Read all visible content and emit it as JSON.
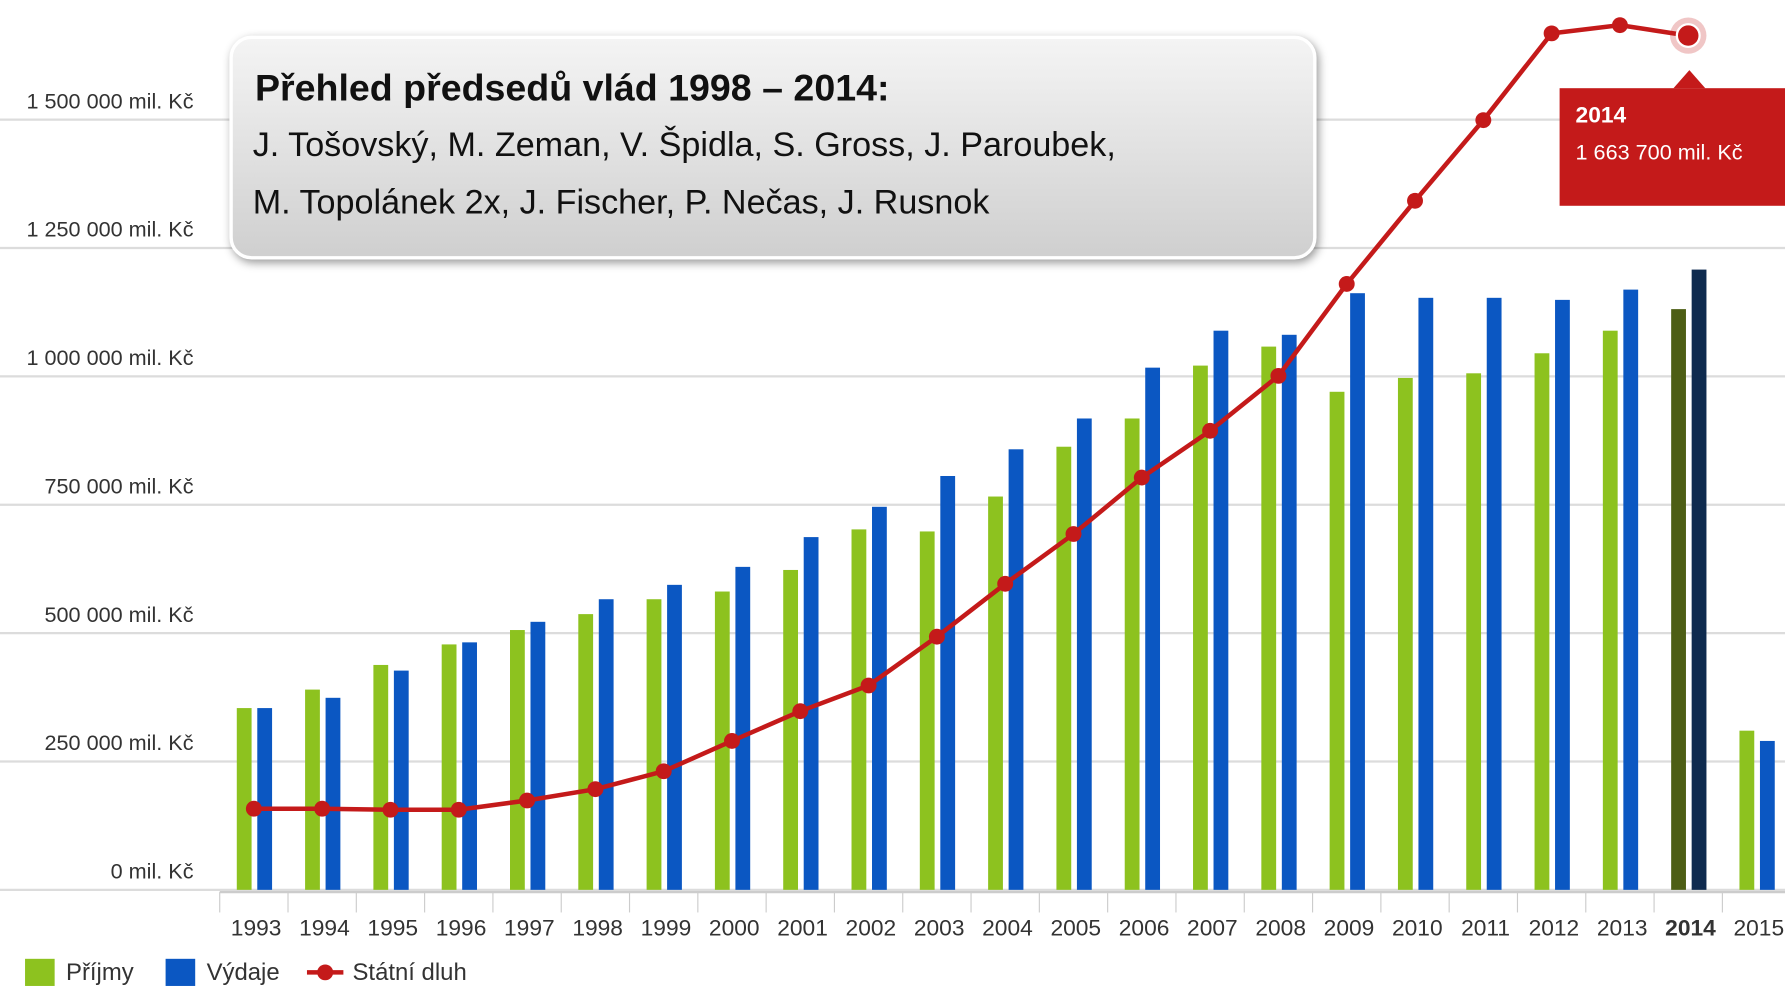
{
  "chart_data": {
    "type": "bar_line",
    "categories": [
      "1993",
      "1994",
      "1995",
      "1996",
      "1997",
      "1998",
      "1999",
      "2000",
      "2001",
      "2002",
      "2003",
      "2004",
      "2005",
      "2006",
      "2007",
      "2008",
      "2009",
      "2010",
      "2011",
      "2012",
      "2013",
      "2014",
      "2015"
    ],
    "series": [
      {
        "name": "Příjmy",
        "type": "bar",
        "color": "#8dc21f",
        "highlight_color": "#4d5e14",
        "values": [
          354000,
          390000,
          438000,
          478000,
          506000,
          537000,
          566000,
          581000,
          623000,
          702000,
          698000,
          766000,
          863000,
          918000,
          1021000,
          1058000,
          970000,
          997000,
          1006000,
          1045000,
          1089000,
          1131000,
          310000
        ]
      },
      {
        "name": "Výdaje",
        "type": "bar",
        "color": "#0b57c2",
        "highlight_color": "#0f2b4f",
        "values": [
          354000,
          374000,
          427000,
          482000,
          522000,
          566000,
          594000,
          629000,
          687000,
          746000,
          806000,
          858000,
          918000,
          1017000,
          1089000,
          1081000,
          1162000,
          1153000,
          1153000,
          1149000,
          1169000,
          1208000,
          290000
        ]
      },
      {
        "name": "Státní dluh",
        "type": "line",
        "color": "#c41a1a",
        "values": [
          158000,
          158000,
          156000,
          156000,
          174000,
          196000,
          231000,
          290000,
          348000,
          398000,
          493000,
          596000,
          693000,
          803000,
          894000,
          1001000,
          1180000,
          1342000,
          1499000,
          1668000,
          1684000,
          1663700,
          null
        ]
      }
    ],
    "ylim": [
      0,
      1700000
    ],
    "yticks": [
      {
        "value": 0,
        "label": "0 mil. Kč"
      },
      {
        "value": 250000,
        "label": "250 000 mil. Kč"
      },
      {
        "value": 500000,
        "label": "500 000 mil. Kč"
      },
      {
        "value": 750000,
        "label": "750 000 mil. Kč"
      },
      {
        "value": 1000000,
        "label": "1 000 000 mil. Kč"
      },
      {
        "value": 1250000,
        "label": "1 250 000 mil. Kč"
      },
      {
        "value": 1500000,
        "label": "1 500 000 mil. Kč"
      }
    ],
    "grid": true,
    "legend": "bottom-left",
    "tooltip": {
      "label": "2014",
      "value": 1663700,
      "value_label": "1 663 700 mil. Kč"
    },
    "annotation": {
      "title": "Přehled předsedů vlád 1998 – 2014:",
      "lines": [
        "J. Tošovský, M. Zeman, V. Špidla, S. Gross,  J. Paroubek,",
        "M. Topolánek 2x, J. Fischer, P. Nečas, J. Rusnok"
      ]
    }
  }
}
